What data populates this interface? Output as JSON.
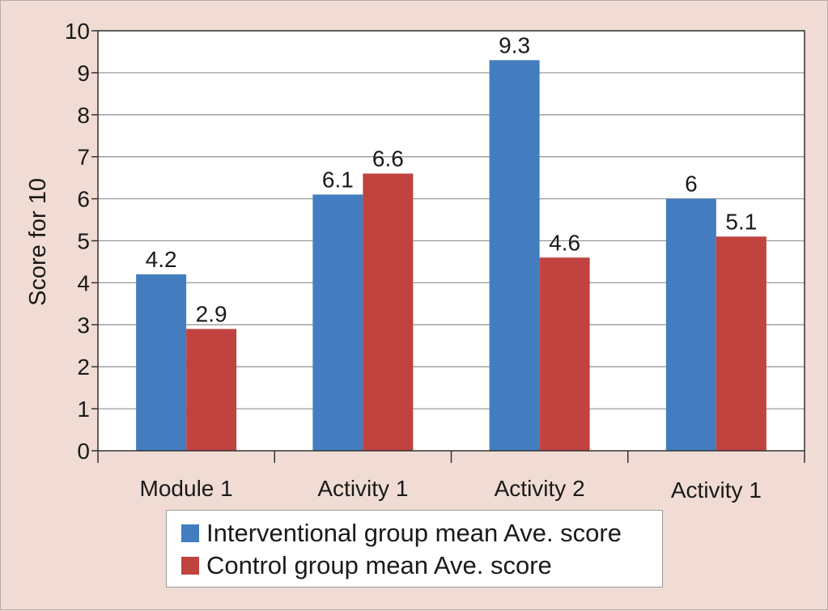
{
  "chart_data": {
    "type": "bar",
    "title": "",
    "xlabel": "",
    "ylabel": "Score for 10",
    "ylim": [
      0,
      10
    ],
    "yticks": [
      0,
      1,
      2,
      3,
      4,
      5,
      6,
      7,
      8,
      9,
      10
    ],
    "categories": [
      "Module 1",
      "Activity 1",
      "Activity 2",
      "Activity 1"
    ],
    "series": [
      {
        "name": "Interventional group mean Ave. score",
        "color": "#437dc0",
        "values": [
          4.2,
          6.1,
          9.3,
          6
        ],
        "labels": [
          "4.2",
          "6.1",
          "9.3",
          "6"
        ]
      },
      {
        "name": "Control group mean Ave. score",
        "color": "#c0433f",
        "values": [
          2.9,
          6.6,
          4.6,
          5.1
        ],
        "labels": [
          "2.9",
          "6.6",
          "4.6",
          "5.1"
        ]
      }
    ],
    "grid": true,
    "legend_position": "bottom"
  }
}
